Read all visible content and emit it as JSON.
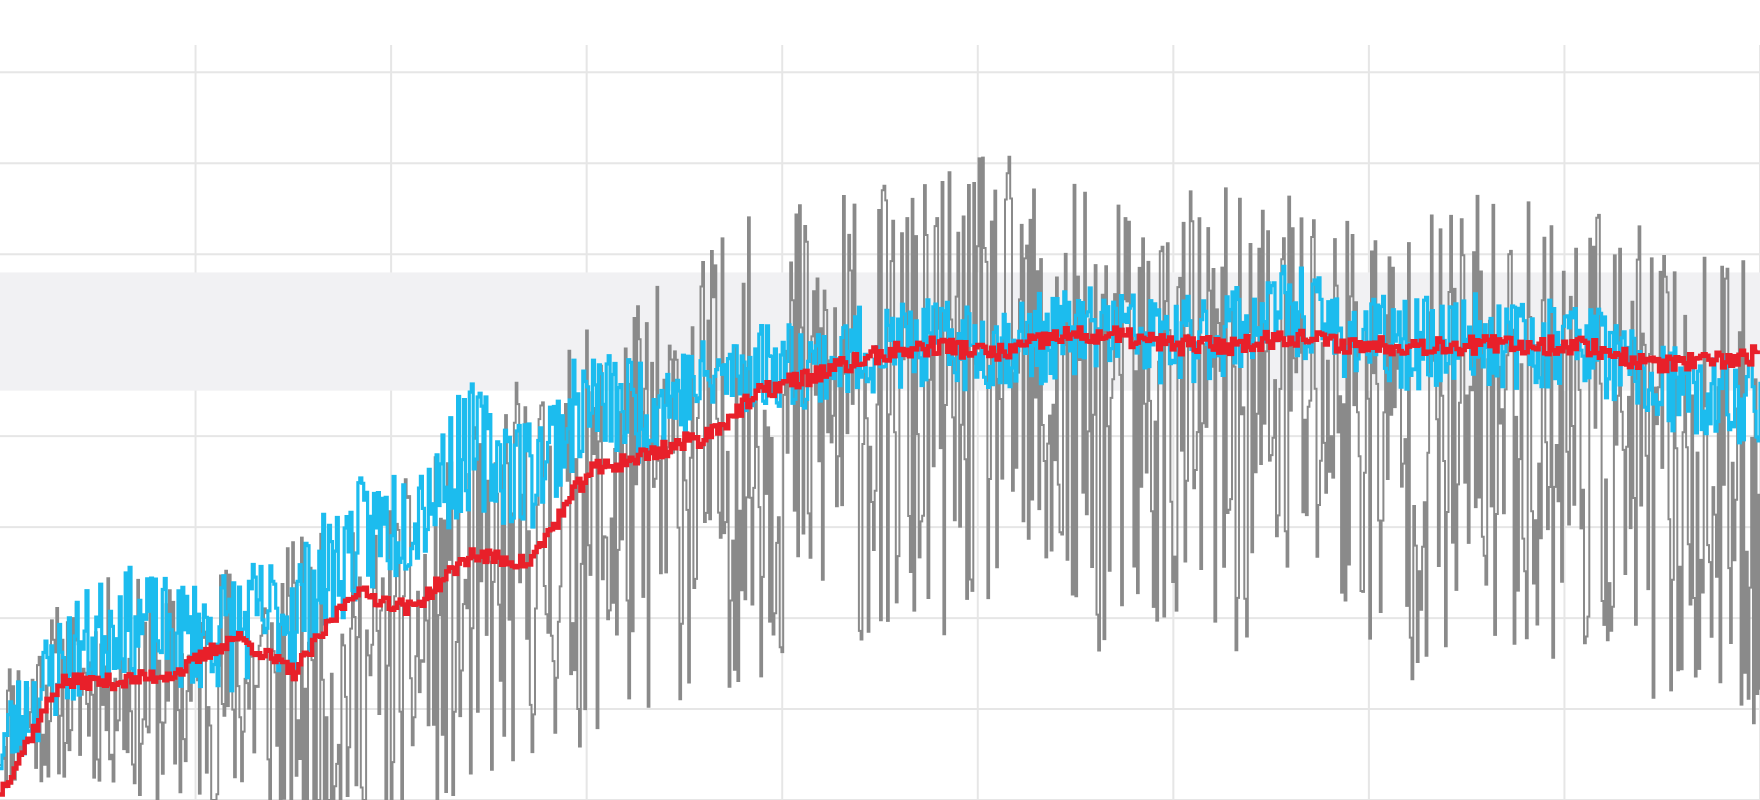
{
  "chart_data": {
    "type": "line",
    "title": "",
    "xlabel": "",
    "ylabel": "",
    "grid": true,
    "legend": "none",
    "xlim": [
      0,
      900
    ],
    "ylim": [
      0,
      8.3
    ],
    "target_band": [
      4.5,
      5.8
    ],
    "colors": {
      "raw": "#8a8a8a",
      "short_avg": "#1cbcee",
      "long_avg": "#e8202a",
      "band": "#f1f1f3",
      "grid": "#e6e6e6"
    },
    "series": [
      {
        "key": "raw",
        "x": [
          0,
          30,
          60,
          90,
          120,
          150,
          180,
          210,
          240,
          270,
          300,
          330,
          360,
          390,
          420,
          450,
          480,
          510,
          540,
          570,
          600,
          630,
          660,
          690,
          720,
          750,
          780,
          810,
          840,
          870,
          900
        ],
        "values": [
          0.8,
          1.2,
          1.3,
          1.1,
          1.3,
          1.2,
          1.2,
          1.6,
          2.0,
          2.6,
          2.9,
          3.3,
          3.7,
          3.9,
          4.3,
          4.2,
          4.3,
          4.6,
          4.2,
          4.1,
          4.3,
          4.1,
          4.5,
          4.3,
          3.9,
          4.1,
          4.2,
          4.1,
          3.7,
          3.4,
          3.3
        ],
        "volatility": [
          0.8,
          1.0,
          1.2,
          1.3,
          1.5,
          1.7,
          1.8,
          2.0,
          2.1,
          2.2,
          2.3,
          2.4,
          2.5,
          2.6,
          2.6,
          2.6,
          2.6,
          2.6,
          2.6,
          2.6,
          2.6,
          2.6,
          2.6,
          2.6,
          2.6,
          2.6,
          2.6,
          2.6,
          2.6,
          2.6,
          2.6
        ]
      },
      {
        "key": "short_avg",
        "x": [
          0,
          30,
          60,
          90,
          120,
          150,
          180,
          210,
          240,
          270,
          300,
          330,
          360,
          390,
          420,
          450,
          480,
          510,
          540,
          570,
          600,
          630,
          660,
          690,
          720,
          750,
          780,
          810,
          840,
          870,
          900
        ],
        "values": [
          0.6,
          1.5,
          2.0,
          1.8,
          1.9,
          2.1,
          2.8,
          3.2,
          3.9,
          3.6,
          4.4,
          4.3,
          4.6,
          4.8,
          4.8,
          5.0,
          5.0,
          5.0,
          5.1,
          5.2,
          5.0,
          5.2,
          5.4,
          5.1,
          5.0,
          5.1,
          5.0,
          5.1,
          4.6,
          4.4,
          4.4
        ],
        "volatility": [
          0.5,
          0.6,
          0.6,
          0.6,
          0.7,
          0.7,
          0.7,
          0.7,
          0.7,
          0.7,
          0.6,
          0.6,
          0.5,
          0.5,
          0.5,
          0.5,
          0.5,
          0.5,
          0.5,
          0.5,
          0.5,
          0.5,
          0.5,
          0.5,
          0.5,
          0.5,
          0.5,
          0.5,
          0.5,
          0.5,
          0.5
        ]
      },
      {
        "key": "long_avg",
        "x": [
          0,
          30,
          60,
          90,
          120,
          150,
          180,
          210,
          240,
          270,
          300,
          330,
          360,
          390,
          420,
          450,
          480,
          510,
          540,
          570,
          600,
          630,
          660,
          690,
          720,
          750,
          780,
          810,
          840,
          870,
          900
        ],
        "values": [
          0.1,
          1.3,
          1.3,
          1.4,
          1.8,
          1.4,
          2.3,
          2.1,
          2.7,
          2.6,
          3.6,
          3.8,
          4.0,
          4.5,
          4.7,
          4.9,
          5.0,
          4.9,
          5.1,
          5.1,
          5.0,
          5.0,
          5.1,
          5.0,
          5.0,
          5.0,
          5.0,
          5.0,
          4.8,
          4.8,
          4.9
        ],
        "volatility": [
          0.08,
          0.08,
          0.08,
          0.08,
          0.08,
          0.08,
          0.08,
          0.08,
          0.08,
          0.08,
          0.1,
          0.1,
          0.1,
          0.1,
          0.1,
          0.1,
          0.1,
          0.1,
          0.1,
          0.1,
          0.1,
          0.1,
          0.1,
          0.1,
          0.1,
          0.1,
          0.1,
          0.1,
          0.1,
          0.1,
          0.1
        ]
      }
    ]
  }
}
